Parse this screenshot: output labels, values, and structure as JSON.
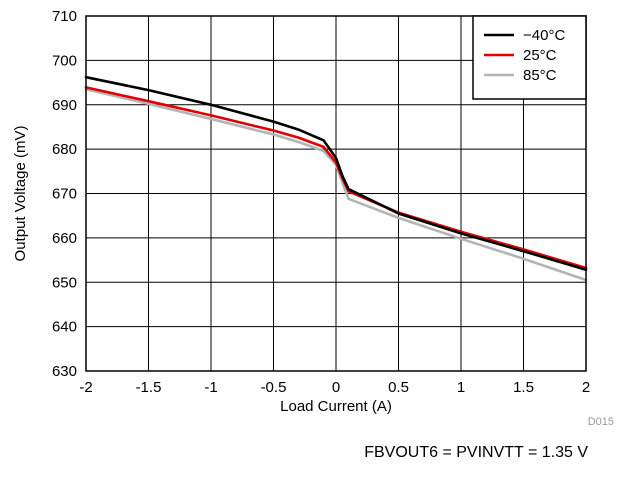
{
  "chart_data": {
    "type": "line",
    "title": "",
    "xlabel": "Load Current (A)",
    "ylabel": "Output Voltage (mV)",
    "xlim": [
      -2,
      2
    ],
    "ylim": [
      630,
      710
    ],
    "x_ticks": [
      -2,
      -1.5,
      -1,
      -0.5,
      0,
      0.5,
      1,
      1.5,
      2
    ],
    "x_tick_labels": [
      "-2",
      "-1.5",
      "-1",
      "-0.5",
      "0",
      "0.5",
      "1",
      "1.5",
      "2"
    ],
    "y_ticks": [
      630,
      640,
      650,
      660,
      670,
      680,
      690,
      700,
      710
    ],
    "y_tick_labels": [
      "630",
      "640",
      "650",
      "660",
      "670",
      "680",
      "690",
      "700",
      "710"
    ],
    "grid": true,
    "legend_position": "top-right",
    "series": [
      {
        "name": "−40°C",
        "color": "#000000",
        "x": [
          -2,
          -1.5,
          -1,
          -0.5,
          -0.3,
          -0.1,
          0,
          0.05,
          0.1,
          0.5,
          1,
          1.5,
          2
        ],
        "y": [
          696.2,
          693.3,
          690.0,
          686.2,
          684.4,
          682.0,
          678.0,
          674.0,
          671.0,
          665.5,
          661.0,
          657.0,
          652.8
        ]
      },
      {
        "name": "25°C",
        "color": "#e00000",
        "x": [
          -2,
          -1.5,
          -1,
          -0.5,
          -0.3,
          -0.1,
          0,
          0.05,
          0.1,
          0.5,
          1,
          1.5,
          2
        ],
        "y": [
          693.9,
          690.8,
          687.6,
          684.2,
          682.6,
          680.5,
          677.0,
          673.5,
          670.5,
          665.7,
          661.4,
          657.4,
          653.2
        ]
      },
      {
        "name": "85°C",
        "color": "#b4b4b4",
        "x": [
          -2,
          -1.5,
          -1,
          -0.5,
          -0.3,
          -0.1,
          0,
          0.05,
          0.1,
          0.5,
          1,
          1.5,
          2
        ],
        "y": [
          693.5,
          690.2,
          686.8,
          683.3,
          681.6,
          679.6,
          676.5,
          672.5,
          668.8,
          664.5,
          659.8,
          655.3,
          650.5
        ]
      }
    ]
  },
  "figure_code": "D015",
  "condition_note": "FBVOUT6 = PVINVTT = 1.35 V"
}
